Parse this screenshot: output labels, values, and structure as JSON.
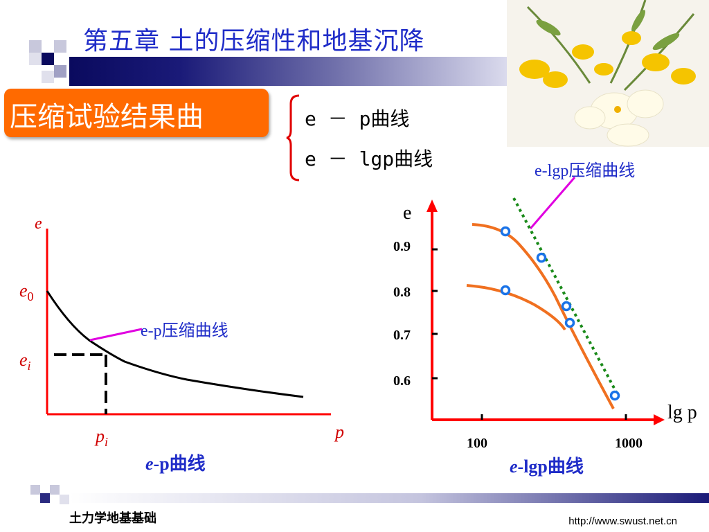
{
  "slide": {
    "title": "第五章 土的压缩性和地基沉降",
    "section_heading": "压缩试验结果曲",
    "curve_types": [
      "e － p曲线",
      "e － lgp曲线"
    ],
    "footer_left": "土力学地基基础",
    "footer_url": "http://www.swust.net.cn"
  },
  "colors": {
    "title": "#1f2cc8",
    "orange": "#ff6a00",
    "axis_red": "#ff0000",
    "curve_orange": "#f07020",
    "point_blue": "#1a73e8",
    "label_magenta": "#e000e0",
    "dotted_green": "#1a8a1a",
    "header_gradient_dark": "#0a0a5e"
  },
  "left_diagram": {
    "axis_y_label": "e",
    "axis_x_label": "p",
    "e0_label": "e0",
    "ei_label": "ei",
    "pi_label": "pi",
    "curve_label": "e-p压缩曲线",
    "caption_italic": "e",
    "caption_rest": "-p曲线"
  },
  "right_diagram": {
    "axis_y_label": "e",
    "axis_x_label": "lg p",
    "curve_label": "e-lgp压缩曲线",
    "caption_italic": "e",
    "caption_rest": "-lgp曲线",
    "chart_data": {
      "type": "line",
      "y_ticks": [
        "0.9",
        "0.8",
        "0.7",
        "0.6"
      ],
      "x_ticks": [
        "100",
        "1000"
      ]
    }
  }
}
